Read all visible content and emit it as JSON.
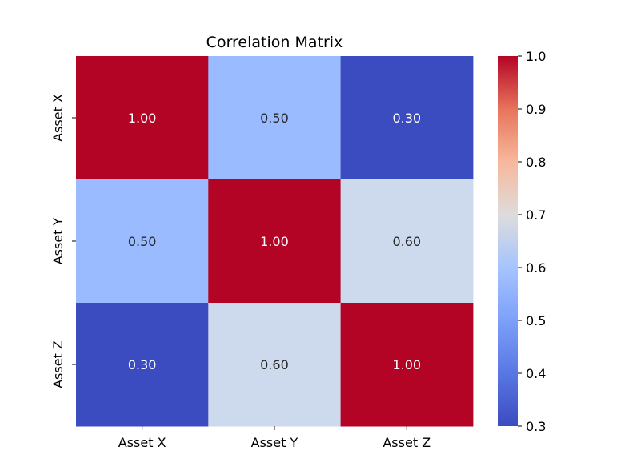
{
  "chart_data": {
    "type": "heatmap",
    "title": "Correlation Matrix",
    "x_labels": [
      "Asset X",
      "Asset Y",
      "Asset Z"
    ],
    "y_labels": [
      "Asset X",
      "Asset Y",
      "Asset Z"
    ],
    "values": [
      [
        1.0,
        0.5,
        0.3
      ],
      [
        0.5,
        1.0,
        0.6
      ],
      [
        0.3,
        0.6,
        1.0
      ]
    ],
    "annotations": [
      [
        "1.00",
        "0.50",
        "0.30"
      ],
      [
        "0.50",
        "1.00",
        "0.60"
      ],
      [
        "0.30",
        "0.60",
        "1.00"
      ]
    ],
    "colormap": "coolwarm",
    "vmin": 0.3,
    "vmax": 1.0,
    "colorbar_ticks": [
      "0.3",
      "0.4",
      "0.5",
      "0.6",
      "0.7",
      "0.8",
      "0.9",
      "1.0"
    ],
    "colorbar_tick_values": [
      0.3,
      0.4,
      0.5,
      0.6,
      0.7,
      0.8,
      0.9,
      1.0
    ],
    "cell_colors": {
      "1.0": "#b40426",
      "0.6": "#cdd9ec",
      "0.5": "#9abbff",
      "0.3": "#3b4cc0"
    },
    "annotation_text_colors": {
      "light": "#ffffff",
      "dark": "#262626"
    },
    "grid": false,
    "colorbar_position": "right"
  }
}
